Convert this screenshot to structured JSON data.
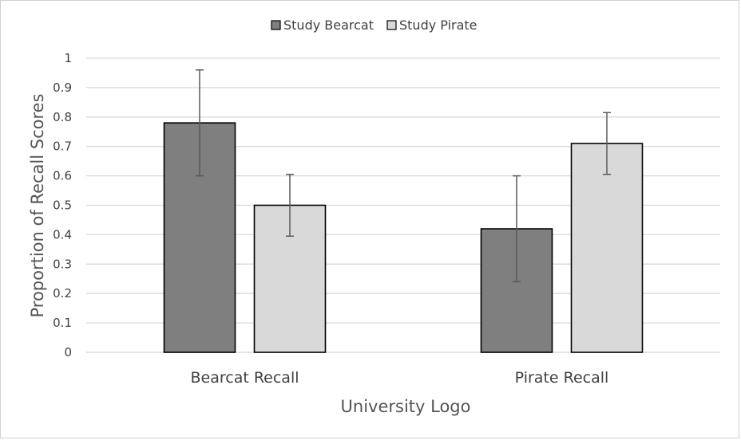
{
  "chart_data": {
    "type": "bar",
    "title": "",
    "xlabel": "University Logo",
    "ylabel": "Proportion of Recall Scores",
    "ylim": [
      0,
      1
    ],
    "yticks": [
      "0",
      "0.1",
      "0.2",
      "0.3",
      "0.4",
      "0.5",
      "0.6",
      "0.7",
      "0.8",
      "0.9",
      "1"
    ],
    "grid": true,
    "legend_position": "top",
    "categories": [
      "Bearcat Recall",
      "Pirate Recall"
    ],
    "series": [
      {
        "name": "Study Bearcat",
        "color": "#7f7f7f",
        "values": [
          0.78,
          0.42
        ],
        "err_low": [
          0.6,
          0.24
        ],
        "err_high": [
          0.96,
          0.6
        ]
      },
      {
        "name": "Study Pirate",
        "color": "#d9d9d9",
        "values": [
          0.5,
          0.71
        ],
        "err_low": [
          0.395,
          0.605
        ],
        "err_high": [
          0.605,
          0.815
        ]
      }
    ]
  }
}
